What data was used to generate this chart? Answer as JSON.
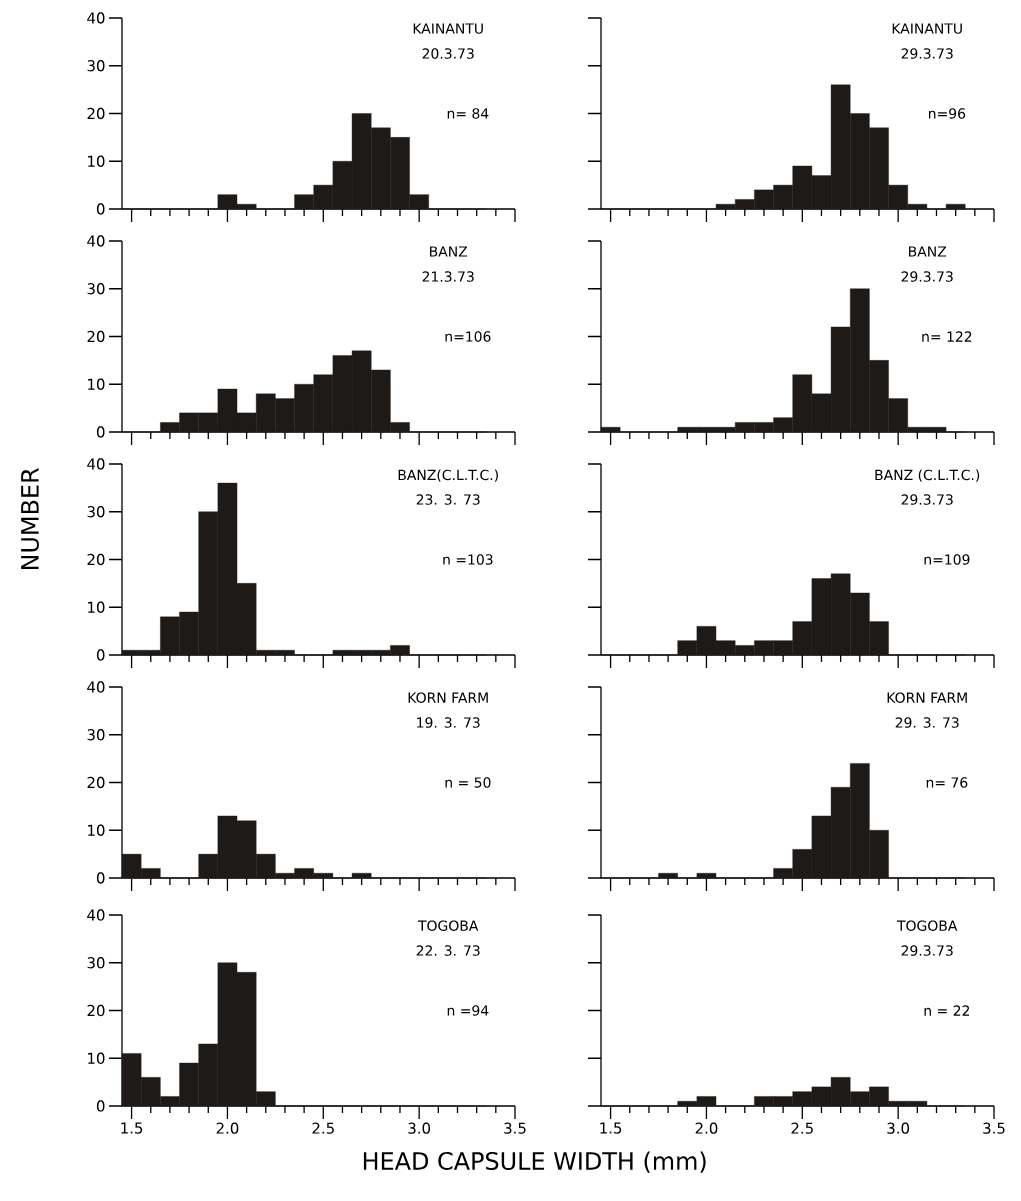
{
  "chart_data": [
    {
      "type": "histogram",
      "title": "KAINANTU",
      "subtitle": "20.3.73",
      "annotations": [
        "n= 84"
      ],
      "color": "#1e1a17",
      "bins": [
        1.45,
        1.55,
        1.65,
        1.75,
        1.85,
        1.95,
        2.05,
        2.15,
        2.25,
        2.35,
        2.45,
        2.55,
        2.65,
        2.75,
        2.85,
        2.95,
        3.05,
        3.15,
        3.25,
        3.35
      ],
      "values": [
        0,
        0,
        0,
        0,
        0,
        3,
        1,
        0,
        0,
        3,
        5,
        10,
        20,
        17,
        15,
        3,
        0,
        0,
        0
      ],
      "xlim": [
        1.45,
        3.5
      ],
      "ylim": [
        0,
        40
      ],
      "yticks": [
        0,
        10,
        20,
        30,
        40
      ],
      "xticks": [
        1.5,
        {
          "value": 1.6,
          "label": null
        },
        {
          "value": 1.7,
          "label": null
        },
        {
          "value": 1.8,
          "label": null
        },
        {
          "value": 1.9,
          "label": null
        },
        2,
        {
          "value": 2.1,
          "label": null
        },
        {
          "value": 2.2,
          "label": null
        },
        {
          "value": 2.3,
          "label": null
        },
        {
          "value": 2.4,
          "label": null
        },
        2.5,
        {
          "value": 2.6,
          "label": null
        },
        {
          "value": 2.7,
          "label": null
        },
        {
          "value": 2.8,
          "label": null
        },
        {
          "value": 2.9,
          "label": null
        },
        3,
        {
          "value": 3.1,
          "label": null
        },
        {
          "value": 3.2,
          "label": null
        },
        {
          "value": 3.3,
          "label": null
        },
        {
          "value": 3.4,
          "label": null
        },
        3.5
      ],
      "tick_labels": "y"
    },
    {
      "type": "histogram",
      "title": "KAINANTU",
      "subtitle": "29.3.73",
      "annotations": [
        "n=96"
      ],
      "color": "#1e1a17",
      "bins": [
        1.45,
        1.55,
        1.65,
        1.75,
        1.85,
        1.95,
        2.05,
        2.15,
        2.25,
        2.35,
        2.45,
        2.55,
        2.65,
        2.75,
        2.85,
        2.95,
        3.05,
        3.15,
        3.25,
        3.35
      ],
      "values": [
        0,
        0,
        0,
        0,
        0,
        0,
        1,
        2,
        4,
        5,
        9,
        7,
        26,
        20,
        17,
        5,
        1,
        0,
        1
      ],
      "xlim": [
        1.45,
        3.5
      ],
      "ylim": [
        0,
        40
      ],
      "yticks": [
        0,
        10,
        20,
        30,
        40
      ],
      "xticks": [
        1.5,
        {
          "value": 1.6,
          "label": null
        },
        {
          "value": 1.7,
          "label": null
        },
        {
          "value": 1.8,
          "label": null
        },
        {
          "value": 1.9,
          "label": null
        },
        2,
        {
          "value": 2.1,
          "label": null
        },
        {
          "value": 2.2,
          "label": null
        },
        {
          "value": 2.3,
          "label": null
        },
        {
          "value": 2.4,
          "label": null
        },
        2.5,
        {
          "value": 2.6,
          "label": null
        },
        {
          "value": 2.7,
          "label": null
        },
        {
          "value": 2.8,
          "label": null
        },
        {
          "value": 2.9,
          "label": null
        },
        3,
        {
          "value": 3.1,
          "label": null
        },
        {
          "value": 3.2,
          "label": null
        },
        {
          "value": 3.3,
          "label": null
        },
        {
          "value": 3.4,
          "label": null
        },
        3.5
      ],
      "tick_labels": false
    },
    {
      "type": "histogram",
      "title": "BANZ",
      "subtitle": "21.3.73",
      "annotations": [
        "n=106"
      ],
      "color": "#1e1a17",
      "bins": [
        1.45,
        1.55,
        1.65,
        1.75,
        1.85,
        1.95,
        2.05,
        2.15,
        2.25,
        2.35,
        2.45,
        2.55,
        2.65,
        2.75,
        2.85,
        2.95,
        3.05,
        3.15,
        3.25,
        3.35
      ],
      "values": [
        0,
        0,
        2,
        4,
        4,
        9,
        4,
        8,
        7,
        10,
        12,
        16,
        17,
        13,
        2,
        0,
        0,
        0,
        0
      ],
      "xlim": [
        1.45,
        3.5
      ],
      "ylim": [
        0,
        40
      ],
      "yticks": [
        0,
        10,
        20,
        30,
        40
      ],
      "xticks": [
        1.5,
        {
          "value": 1.6,
          "label": null
        },
        {
          "value": 1.7,
          "label": null
        },
        {
          "value": 1.8,
          "label": null
        },
        {
          "value": 1.9,
          "label": null
        },
        2,
        {
          "value": 2.1,
          "label": null
        },
        {
          "value": 2.2,
          "label": null
        },
        {
          "value": 2.3,
          "label": null
        },
        {
          "value": 2.4,
          "label": null
        },
        2.5,
        {
          "value": 2.6,
          "label": null
        },
        {
          "value": 2.7,
          "label": null
        },
        {
          "value": 2.8,
          "label": null
        },
        {
          "value": 2.9,
          "label": null
        },
        3,
        {
          "value": 3.1,
          "label": null
        },
        {
          "value": 3.2,
          "label": null
        },
        {
          "value": 3.3,
          "label": null
        },
        {
          "value": 3.4,
          "label": null
        },
        3.5
      ],
      "tick_labels": "y"
    },
    {
      "type": "histogram",
      "title": "BANZ",
      "subtitle": "29.3.73",
      "annotations": [
        "n= 122"
      ],
      "color": "#1e1a17",
      "bins": [
        1.45,
        1.55,
        1.65,
        1.75,
        1.85,
        1.95,
        2.05,
        2.15,
        2.25,
        2.35,
        2.45,
        2.55,
        2.65,
        2.75,
        2.85,
        2.95,
        3.05,
        3.15,
        3.25,
        3.35
      ],
      "values": [
        1,
        0,
        0,
        0,
        1,
        1,
        1,
        2,
        2,
        3,
        12,
        8,
        22,
        30,
        15,
        7,
        1,
        1,
        0
      ],
      "xlim": [
        1.45,
        3.5
      ],
      "ylim": [
        0,
        40
      ],
      "yticks": [
        0,
        10,
        20,
        30,
        40
      ],
      "xticks": [
        1.5,
        {
          "value": 1.6,
          "label": null
        },
        {
          "value": 1.7,
          "label": null
        },
        {
          "value": 1.8,
          "label": null
        },
        {
          "value": 1.9,
          "label": null
        },
        2,
        {
          "value": 2.1,
          "label": null
        },
        {
          "value": 2.2,
          "label": null
        },
        {
          "value": 2.3,
          "label": null
        },
        {
          "value": 2.4,
          "label": null
        },
        2.5,
        {
          "value": 2.6,
          "label": null
        },
        {
          "value": 2.7,
          "label": null
        },
        {
          "value": 2.8,
          "label": null
        },
        {
          "value": 2.9,
          "label": null
        },
        3,
        {
          "value": 3.1,
          "label": null
        },
        {
          "value": 3.2,
          "label": null
        },
        {
          "value": 3.3,
          "label": null
        },
        {
          "value": 3.4,
          "label": null
        },
        3.5
      ],
      "tick_labels": false
    },
    {
      "type": "histogram",
      "title": "BANZ(C.L.T.C.)",
      "subtitle": "23. 3. 73",
      "annotations": [
        "n =103"
      ],
      "ylabel": "NUMBER",
      "color": "#1e1a17",
      "bins": [
        1.45,
        1.55,
        1.65,
        1.75,
        1.85,
        1.95,
        2.05,
        2.15,
        2.25,
        2.35,
        2.45,
        2.55,
        2.65,
        2.75,
        2.85,
        2.95,
        3.05,
        3.15,
        3.25,
        3.35
      ],
      "values": [
        1,
        1,
        8,
        9,
        30,
        36,
        15,
        1,
        1,
        0,
        0,
        1,
        1,
        1,
        2,
        0,
        0,
        0,
        0
      ],
      "xlim": [
        1.45,
        3.5
      ],
      "ylim": [
        0,
        40
      ],
      "yticks": [
        0,
        10,
        20,
        30,
        40
      ],
      "xticks": [
        1.5,
        {
          "value": 1.6,
          "label": null
        },
        {
          "value": 1.7,
          "label": null
        },
        {
          "value": 1.8,
          "label": null
        },
        {
          "value": 1.9,
          "label": null
        },
        2,
        {
          "value": 2.1,
          "label": null
        },
        {
          "value": 2.2,
          "label": null
        },
        {
          "value": 2.3,
          "label": null
        },
        {
          "value": 2.4,
          "label": null
        },
        2.5,
        {
          "value": 2.6,
          "label": null
        },
        {
          "value": 2.7,
          "label": null
        },
        {
          "value": 2.8,
          "label": null
        },
        {
          "value": 2.9,
          "label": null
        },
        3,
        {
          "value": 3.1,
          "label": null
        },
        {
          "value": 3.2,
          "label": null
        },
        {
          "value": 3.3,
          "label": null
        },
        {
          "value": 3.4,
          "label": null
        },
        3.5
      ],
      "tick_labels": "y"
    },
    {
      "type": "histogram",
      "title": "BANZ (C.L.T.C.)",
      "subtitle": "29.3.73",
      "annotations": [
        "n=109"
      ],
      "color": "#1e1a17",
      "bins": [
        1.45,
        1.55,
        1.65,
        1.75,
        1.85,
        1.95,
        2.05,
        2.15,
        2.25,
        2.35,
        2.45,
        2.55,
        2.65,
        2.75,
        2.85,
        2.95,
        3.05,
        3.15,
        3.25,
        3.35
      ],
      "values": [
        0,
        0,
        0,
        0,
        3,
        6,
        3,
        2,
        3,
        3,
        7,
        16,
        17,
        13,
        7,
        0,
        0,
        0,
        0
      ],
      "xlim": [
        1.45,
        3.5
      ],
      "ylim": [
        0,
        40
      ],
      "yticks": [
        0,
        10,
        20,
        30,
        40
      ],
      "xticks": [
        1.5,
        {
          "value": 1.6,
          "label": null
        },
        {
          "value": 1.7,
          "label": null
        },
        {
          "value": 1.8,
          "label": null
        },
        {
          "value": 1.9,
          "label": null
        },
        2,
        {
          "value": 2.1,
          "label": null
        },
        {
          "value": 2.2,
          "label": null
        },
        {
          "value": 2.3,
          "label": null
        },
        {
          "value": 2.4,
          "label": null
        },
        2.5,
        {
          "value": 2.6,
          "label": null
        },
        {
          "value": 2.7,
          "label": null
        },
        {
          "value": 2.8,
          "label": null
        },
        {
          "value": 2.9,
          "label": null
        },
        3,
        {
          "value": 3.1,
          "label": null
        },
        {
          "value": 3.2,
          "label": null
        },
        {
          "value": 3.3,
          "label": null
        },
        {
          "value": 3.4,
          "label": null
        },
        3.5
      ],
      "tick_labels": false
    },
    {
      "type": "histogram",
      "title": "KORN FARM",
      "subtitle": "19. 3. 73",
      "annotations": [
        "n = 50"
      ],
      "color": "#1e1a17",
      "bins": [
        1.45,
        1.55,
        1.65,
        1.75,
        1.85,
        1.95,
        2.05,
        2.15,
        2.25,
        2.35,
        2.45,
        2.55,
        2.65,
        2.75,
        2.85,
        2.95,
        3.05,
        3.15,
        3.25,
        3.35
      ],
      "values": [
        5,
        2,
        0,
        0,
        5,
        13,
        12,
        5,
        1,
        2,
        1,
        0,
        1,
        0,
        0,
        0,
        0,
        0,
        0
      ],
      "xlim": [
        1.45,
        3.5
      ],
      "ylim": [
        0,
        40
      ],
      "yticks": [
        0,
        10,
        20,
        30,
        40
      ],
      "xticks": [
        1.5,
        {
          "value": 1.6,
          "label": null
        },
        {
          "value": 1.7,
          "label": null
        },
        {
          "value": 1.8,
          "label": null
        },
        {
          "value": 1.9,
          "label": null
        },
        2,
        {
          "value": 2.1,
          "label": null
        },
        {
          "value": 2.2,
          "label": null
        },
        {
          "value": 2.3,
          "label": null
        },
        {
          "value": 2.4,
          "label": null
        },
        2.5,
        {
          "value": 2.6,
          "label": null
        },
        {
          "value": 2.7,
          "label": null
        },
        {
          "value": 2.8,
          "label": null
        },
        {
          "value": 2.9,
          "label": null
        },
        3,
        {
          "value": 3.1,
          "label": null
        },
        {
          "value": 3.2,
          "label": null
        },
        {
          "value": 3.3,
          "label": null
        },
        {
          "value": 3.4,
          "label": null
        },
        3.5
      ],
      "tick_labels": "y"
    },
    {
      "type": "histogram",
      "title": "KORN FARM",
      "subtitle": "29. 3. 73",
      "annotations": [
        "n= 76"
      ],
      "color": "#1e1a17",
      "bins": [
        1.45,
        1.55,
        1.65,
        1.75,
        1.85,
        1.95,
        2.05,
        2.15,
        2.25,
        2.35,
        2.45,
        2.55,
        2.65,
        2.75,
        2.85,
        2.95,
        3.05,
        3.15,
        3.25,
        3.35
      ],
      "values": [
        0,
        0,
        0,
        1,
        0,
        1,
        0,
        0,
        0,
        2,
        6,
        13,
        19,
        24,
        10,
        0,
        0,
        0,
        0
      ],
      "xlim": [
        1.45,
        3.5
      ],
      "ylim": [
        0,
        40
      ],
      "yticks": [
        0,
        10,
        20,
        30,
        40
      ],
      "xticks": [
        1.5,
        {
          "value": 1.6,
          "label": null
        },
        {
          "value": 1.7,
          "label": null
        },
        {
          "value": 1.8,
          "label": null
        },
        {
          "value": 1.9,
          "label": null
        },
        2,
        {
          "value": 2.1,
          "label": null
        },
        {
          "value": 2.2,
          "label": null
        },
        {
          "value": 2.3,
          "label": null
        },
        {
          "value": 2.4,
          "label": null
        },
        2.5,
        {
          "value": 2.6,
          "label": null
        },
        {
          "value": 2.7,
          "label": null
        },
        {
          "value": 2.8,
          "label": null
        },
        {
          "value": 2.9,
          "label": null
        },
        3,
        {
          "value": 3.1,
          "label": null
        },
        {
          "value": 3.2,
          "label": null
        },
        {
          "value": 3.3,
          "label": null
        },
        {
          "value": 3.4,
          "label": null
        },
        3.5
      ],
      "tick_labels": false
    },
    {
      "type": "histogram",
      "title": "TOGOBA",
      "subtitle": "22. 3. 73",
      "annotations": [
        "n =94"
      ],
      "xlabel": "HEAD CAPSULE WIDTH (mm)",
      "color": "#1e1a17",
      "bins": [
        1.45,
        1.55,
        1.65,
        1.75,
        1.85,
        1.95,
        2.05,
        2.15,
        2.25,
        2.35,
        2.45,
        2.55,
        2.65,
        2.75,
        2.85,
        2.95,
        3.05,
        3.15,
        3.25,
        3.35
      ],
      "values": [
        11,
        6,
        2,
        9,
        13,
        30,
        28,
        3,
        0,
        0,
        0,
        0,
        0,
        0,
        0,
        0,
        0,
        0,
        0
      ],
      "xlim": [
        1.45,
        3.5
      ],
      "ylim": [
        0,
        40
      ],
      "yticks": [
        0,
        10,
        20,
        30,
        40
      ],
      "xticks": [
        1.5,
        {
          "value": 1.6,
          "label": null
        },
        {
          "value": 1.7,
          "label": null
        },
        {
          "value": 1.8,
          "label": null
        },
        {
          "value": 1.9,
          "label": null
        },
        {
          "value": 2,
          "label": "2.0"
        },
        {
          "value": 2.1,
          "label": null
        },
        {
          "value": 2.2,
          "label": null
        },
        {
          "value": 2.3,
          "label": null
        },
        {
          "value": 2.4,
          "label": null
        },
        2.5,
        {
          "value": 2.6,
          "label": null
        },
        {
          "value": 2.7,
          "label": null
        },
        {
          "value": 2.8,
          "label": null
        },
        {
          "value": 2.9,
          "label": null
        },
        {
          "value": 3,
          "label": "3.0"
        },
        {
          "value": 3.1,
          "label": null
        },
        {
          "value": 3.2,
          "label": null
        },
        {
          "value": 3.3,
          "label": null
        },
        {
          "value": 3.4,
          "label": null
        },
        3.5
      ]
    },
    {
      "type": "histogram",
      "title": "TOGOBA",
      "subtitle": "29.3.73",
      "annotations": [
        "n = 22"
      ],
      "color": "#1e1a17",
      "bins": [
        1.45,
        1.55,
        1.65,
        1.75,
        1.85,
        1.95,
        2.05,
        2.15,
        2.25,
        2.35,
        2.45,
        2.55,
        2.65,
        2.75,
        2.85,
        2.95,
        3.05,
        3.15,
        3.25,
        3.35
      ],
      "values": [
        0,
        0,
        0,
        0,
        1,
        2,
        0,
        0,
        2,
        2,
        3,
        4,
        6,
        3,
        4,
        1,
        1,
        0,
        0
      ],
      "xlim": [
        1.45,
        3.5
      ],
      "ylim": [
        0,
        40
      ],
      "yticks": [
        0,
        10,
        20,
        30,
        40
      ],
      "xticks": [
        1.5,
        {
          "value": 1.6,
          "label": null
        },
        {
          "value": 1.7,
          "label": null
        },
        {
          "value": 1.8,
          "label": null
        },
        {
          "value": 1.9,
          "label": null
        },
        {
          "value": 2,
          "label": "2.0"
        },
        {
          "value": 2.1,
          "label": null
        },
        {
          "value": 2.2,
          "label": null
        },
        {
          "value": 2.3,
          "label": null
        },
        {
          "value": 2.4,
          "label": null
        },
        2.5,
        {
          "value": 2.6,
          "label": null
        },
        {
          "value": 2.7,
          "label": null
        },
        {
          "value": 2.8,
          "label": null
        },
        {
          "value": 2.9,
          "label": null
        },
        {
          "value": 3,
          "label": "3.0"
        },
        {
          "value": 3.1,
          "label": null
        },
        {
          "value": 3.2,
          "label": null
        },
        {
          "value": 3.3,
          "label": null
        },
        {
          "value": 3.4,
          "label": null
        },
        3.5
      ],
      "tick_labels": "x"
    }
  ]
}
